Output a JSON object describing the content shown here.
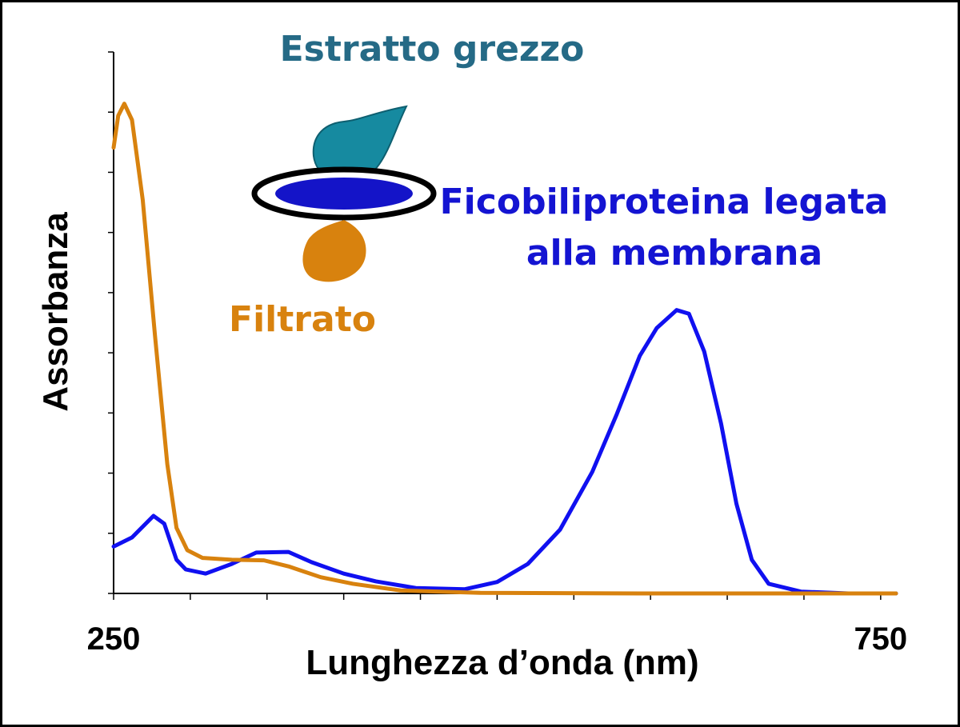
{
  "chart_data": {
    "type": "line",
    "x_label": "Lunghezza d’onda (nm)",
    "y_label": "Assorbanza",
    "xlim": [
      250,
      760
    ],
    "ylim": [
      0,
      9
    ],
    "xticks": [
      250,
      750
    ],
    "xminor_ticks": [
      300,
      350,
      400,
      450,
      500,
      550,
      600,
      650,
      700
    ],
    "yminor_ticks": [
      0,
      1,
      2,
      3,
      4,
      5,
      6,
      7,
      8,
      9
    ],
    "annotations": [
      {
        "text": "Estratto grezzo",
        "color": "#256a86"
      },
      {
        "text": "Ficobiliproteina legata",
        "color": "#1414d2"
      },
      {
        "text": "alla membrana",
        "color": "#1414d2"
      },
      {
        "text": "Filtrato",
        "color": "#d8820e"
      }
    ],
    "series": [
      {
        "color": "#1010f0",
        "x": [
          250,
          262,
          276,
          283,
          291,
          297,
          310,
          327,
          343,
          364,
          379,
          400,
          421,
          447,
          479,
          500,
          520,
          541,
          562,
          578,
          593,
          604,
          617,
          625,
          635,
          646,
          656,
          666,
          677,
          698,
          729,
          760
        ],
        "values": [
          0.78,
          0.93,
          1.29,
          1.16,
          0.56,
          0.4,
          0.33,
          0.49,
          0.68,
          0.69,
          0.52,
          0.33,
          0.2,
          0.09,
          0.07,
          0.19,
          0.49,
          1.06,
          2.02,
          2.98,
          3.95,
          4.41,
          4.71,
          4.65,
          4.02,
          2.82,
          1.49,
          0.56,
          0.16,
          0.03,
          0,
          0
        ]
      },
      {
        "color": "#d8820e",
        "x": [
          250,
          253,
          257,
          262,
          269,
          277,
          285,
          291,
          298,
          308,
          327,
          348,
          364,
          385,
          406,
          437,
          489,
          593,
          698,
          760
        ],
        "values": [
          7.41,
          7.94,
          8.14,
          7.87,
          6.54,
          4.28,
          2.15,
          1.09,
          0.72,
          0.59,
          0.56,
          0.55,
          0.45,
          0.27,
          0.16,
          0.05,
          0.01,
          0,
          0,
          0
        ]
      }
    ]
  }
}
